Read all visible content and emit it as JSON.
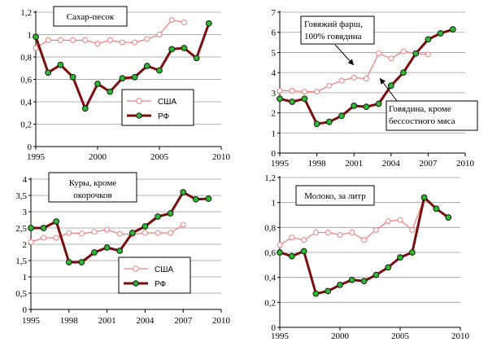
{
  "colors": {
    "usa_line": "#f08080",
    "usa_marker": "#ffffff",
    "rf_line": "#7a0c0c",
    "rf_marker": "#2eb82e",
    "grid": "#9a9a9a",
    "axis": "#000000",
    "box_border": "#000000"
  },
  "chart_data": [
    {
      "type": "line",
      "title": "Сахар-песок",
      "title_lines": [
        "Сахар-песок"
      ],
      "x_ticks": [
        1995,
        2000,
        2005,
        2010
      ],
      "y_ticks": [
        "0",
        "0,2",
        "0,4",
        "0,6",
        "0,8",
        "1",
        "1,2"
      ],
      "xlim": [
        1995,
        2010
      ],
      "ylim": [
        0,
        1.2
      ],
      "grid": true,
      "legend": {
        "placement": "bottom-right",
        "entries": [
          "США",
          "РФ"
        ]
      },
      "series": [
        {
          "name": "США",
          "x": [
            1995,
            1996,
            1997,
            1998,
            1999,
            2000,
            2001,
            2002,
            2003,
            2004,
            2005,
            2006,
            2007
          ],
          "values": [
            0.88,
            0.95,
            0.95,
            0.95,
            0.95,
            0.92,
            0.95,
            0.93,
            0.93,
            0.96,
            1.0,
            1.13,
            1.11
          ]
        },
        {
          "name": "РФ",
          "x": [
            1995,
            1996,
            1997,
            1998,
            1999,
            2000,
            2001,
            2002,
            2003,
            2004,
            2005,
            2006,
            2007,
            2008,
            2009
          ],
          "values": [
            0.98,
            0.66,
            0.73,
            0.62,
            0.34,
            0.56,
            0.49,
            0.61,
            0.62,
            0.72,
            0.68,
            0.87,
            0.88,
            0.79,
            1.1
          ]
        }
      ]
    },
    {
      "type": "line",
      "title": "Говяжий фарш, 100% говядина / Говядина, кроме бесcостного мяса",
      "x_ticks": [
        1995,
        1998,
        2001,
        2004,
        2007,
        2010
      ],
      "y_ticks": [
        "0",
        "1",
        "2",
        "3",
        "4",
        "5",
        "6",
        "7"
      ],
      "xlim": [
        1995,
        2010
      ],
      "ylim": [
        0,
        7
      ],
      "grid": true,
      "annotations": [
        {
          "lines": [
            "Говяжий фарш,",
            "100% говядина"
          ],
          "points_to": [
            2002.7,
            3.7
          ],
          "boxed": true
        },
        {
          "lines": [
            "Говядина, кроме",
            "бесcостного мяса"
          ],
          "points_to": [
            2004.3,
            3.2
          ],
          "boxed": true
        }
      ],
      "series": [
        {
          "name": "Говяжий фарш, 100% говядина",
          "x": [
            1995,
            1996,
            1997,
            1998,
            1999,
            2000,
            2001,
            2002,
            2003,
            2004,
            2005,
            2006,
            2007
          ],
          "values": [
            3.1,
            3.1,
            3.05,
            3.05,
            3.35,
            3.6,
            3.75,
            3.7,
            4.95,
            4.7,
            5.05,
            4.95,
            4.9
          ]
        },
        {
          "name": "Говядина, кроме бесcостного мяса",
          "x": [
            1995,
            1996,
            1997,
            1998,
            1999,
            2000,
            2001,
            2002,
            2003,
            2004,
            2005,
            2006,
            2007,
            2008,
            2009
          ],
          "values": [
            2.7,
            2.55,
            2.7,
            1.45,
            1.55,
            1.85,
            2.35,
            2.3,
            2.45,
            3.35,
            4.0,
            4.95,
            5.65,
            5.95,
            6.15
          ]
        }
      ]
    },
    {
      "type": "line",
      "title": "Куры, кроме окорочков",
      "title_lines": [
        "Куры, кроме",
        "окорочков"
      ],
      "x_ticks": [
        1995,
        1998,
        2001,
        2004,
        2007,
        2010
      ],
      "y_ticks": [
        "0",
        "0,5",
        "1",
        "1,5",
        "2",
        "2,5",
        "3",
        "3,5",
        "4"
      ],
      "xlim": [
        1995,
        2010
      ],
      "ylim": [
        0,
        4
      ],
      "grid": true,
      "legend": {
        "placement": "bottom-right",
        "entries": [
          "США",
          "РФ"
        ]
      },
      "series": [
        {
          "name": "США",
          "x": [
            1995,
            1996,
            1997,
            1998,
            1999,
            2000,
            2001,
            2002,
            2003,
            2004,
            2005,
            2006,
            2007
          ],
          "values": [
            2.07,
            2.2,
            2.2,
            2.35,
            2.33,
            2.38,
            2.45,
            2.32,
            2.3,
            2.35,
            2.35,
            2.35,
            2.6
          ]
        },
        {
          "name": "РФ",
          "x": [
            1995,
            1996,
            1997,
            1998,
            1999,
            2000,
            2001,
            2002,
            2003,
            2004,
            2005,
            2006,
            2007,
            2008,
            2009
          ],
          "values": [
            2.5,
            2.5,
            2.7,
            1.45,
            1.45,
            1.75,
            1.9,
            1.8,
            2.35,
            2.55,
            2.85,
            2.95,
            3.6,
            3.38,
            3.4
          ]
        }
      ]
    },
    {
      "type": "line",
      "title": "Молоко, за литр",
      "title_lines": [
        "Молоко, за литр"
      ],
      "x_ticks": [
        1995,
        2000,
        2005,
        2010
      ],
      "y_ticks": [
        "0",
        "0,2",
        "0,4",
        "0,6",
        "0,8",
        "1",
        "1,2"
      ],
      "xlim": [
        1995,
        2010
      ],
      "ylim": [
        0,
        1.2
      ],
      "grid": true,
      "series": [
        {
          "name": "США",
          "x": [
            1995,
            1996,
            1997,
            1998,
            1999,
            2000,
            2001,
            2002,
            2003,
            2004,
            2005,
            2006,
            2007
          ],
          "values": [
            0.66,
            0.72,
            0.7,
            0.76,
            0.76,
            0.74,
            0.76,
            0.7,
            0.78,
            0.85,
            0.86,
            0.78,
            1.03
          ]
        },
        {
          "name": "РФ",
          "x": [
            1995,
            1996,
            1997,
            1998,
            1999,
            2000,
            2001,
            2002,
            2003,
            2004,
            2005,
            2006,
            2007,
            2008,
            2009
          ],
          "values": [
            0.6,
            0.57,
            0.61,
            0.27,
            0.29,
            0.34,
            0.38,
            0.37,
            0.42,
            0.48,
            0.56,
            0.6,
            1.04,
            0.95,
            0.88
          ]
        }
      ]
    }
  ]
}
